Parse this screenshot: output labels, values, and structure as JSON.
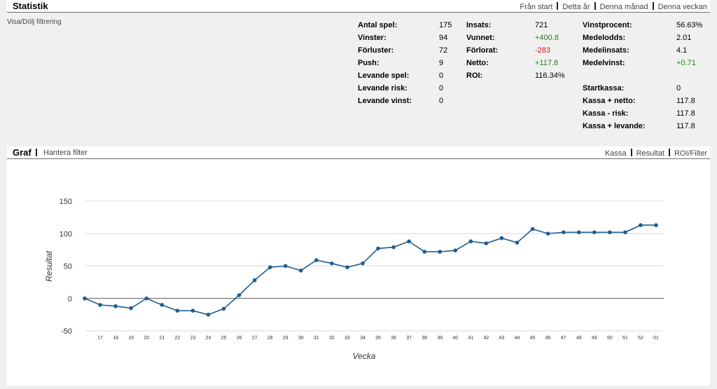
{
  "stats_header": {
    "title": "Statistik",
    "links": [
      "Från start",
      "Detta år",
      "Denna månad",
      "Denna veckan"
    ]
  },
  "filter_toggle": "Visa/Dölj filtrering",
  "stats": {
    "col1": [
      {
        "label": "Antal spel:",
        "value": "175"
      },
      {
        "label": "Vinster:",
        "value": "94"
      },
      {
        "label": "Förluster:",
        "value": "72"
      },
      {
        "label": "Push:",
        "value": "9"
      },
      {
        "label": "Levande spel:",
        "value": "0"
      },
      {
        "label": "Levande risk:",
        "value": "0"
      },
      {
        "label": "Levande vinst:",
        "value": "0"
      }
    ],
    "col2": [
      {
        "label": "Insats:",
        "value": "721",
        "tone": ""
      },
      {
        "label": "Vunnet:",
        "value": "+400.8",
        "tone": "pos"
      },
      {
        "label": "Förlorat:",
        "value": "-283",
        "tone": "neg"
      },
      {
        "label": "Netto:",
        "value": "+117.8",
        "tone": "pos"
      },
      {
        "label": "ROI:",
        "value": "116.34%",
        "tone": ""
      }
    ],
    "col3a": [
      {
        "label": "Vinstprocent:",
        "value": "56.63%",
        "tone": ""
      },
      {
        "label": "Medelodds:",
        "value": "2.01",
        "tone": ""
      },
      {
        "label": "Medelinsats:",
        "value": "4.1",
        "tone": ""
      },
      {
        "label": "Medelvinst:",
        "value": "+0.71",
        "tone": "pos"
      }
    ],
    "col3b": [
      {
        "label": "Startkassa:",
        "value": "0"
      },
      {
        "label": "Kassa + netto:",
        "value": "117.8"
      },
      {
        "label": "Kassa - risk:",
        "value": "117.8"
      },
      {
        "label": "Kassa + levande:",
        "value": "117.8"
      }
    ]
  },
  "graph_header": {
    "title": "Graf",
    "filter_link": "Hantera filter",
    "links": [
      "Kassa",
      "Resultat",
      "ROI/Filter"
    ]
  },
  "chart_data": {
    "type": "line",
    "xlabel": "Vecka",
    "ylabel": "Resultat",
    "ylim": [
      -50,
      150
    ],
    "yticks": [
      -50,
      0,
      50,
      100,
      150
    ],
    "grid": true,
    "legend": "none",
    "line_color": "#1f5d92",
    "categories": [
      "",
      "17",
      "18",
      "19",
      "20",
      "21",
      "22",
      "23",
      "24",
      "25",
      "26",
      "27",
      "28",
      "29",
      "30",
      "31",
      "32",
      "33",
      "34",
      "35",
      "36",
      "37",
      "38",
      "39",
      "40",
      "41",
      "42",
      "43",
      "44",
      "45",
      "46",
      "47",
      "48",
      "49",
      "50",
      "51",
      "52",
      "01"
    ],
    "values": [
      0,
      -10,
      -12,
      -15,
      0,
      -10,
      -19,
      -19,
      -25,
      -16,
      5,
      28,
      48,
      50,
      43,
      59,
      54,
      48,
      54,
      77,
      79,
      88,
      72,
      72,
      74,
      88,
      85,
      93,
      86,
      107,
      100,
      102,
      102,
      102,
      102,
      102,
      113,
      113
    ]
  }
}
